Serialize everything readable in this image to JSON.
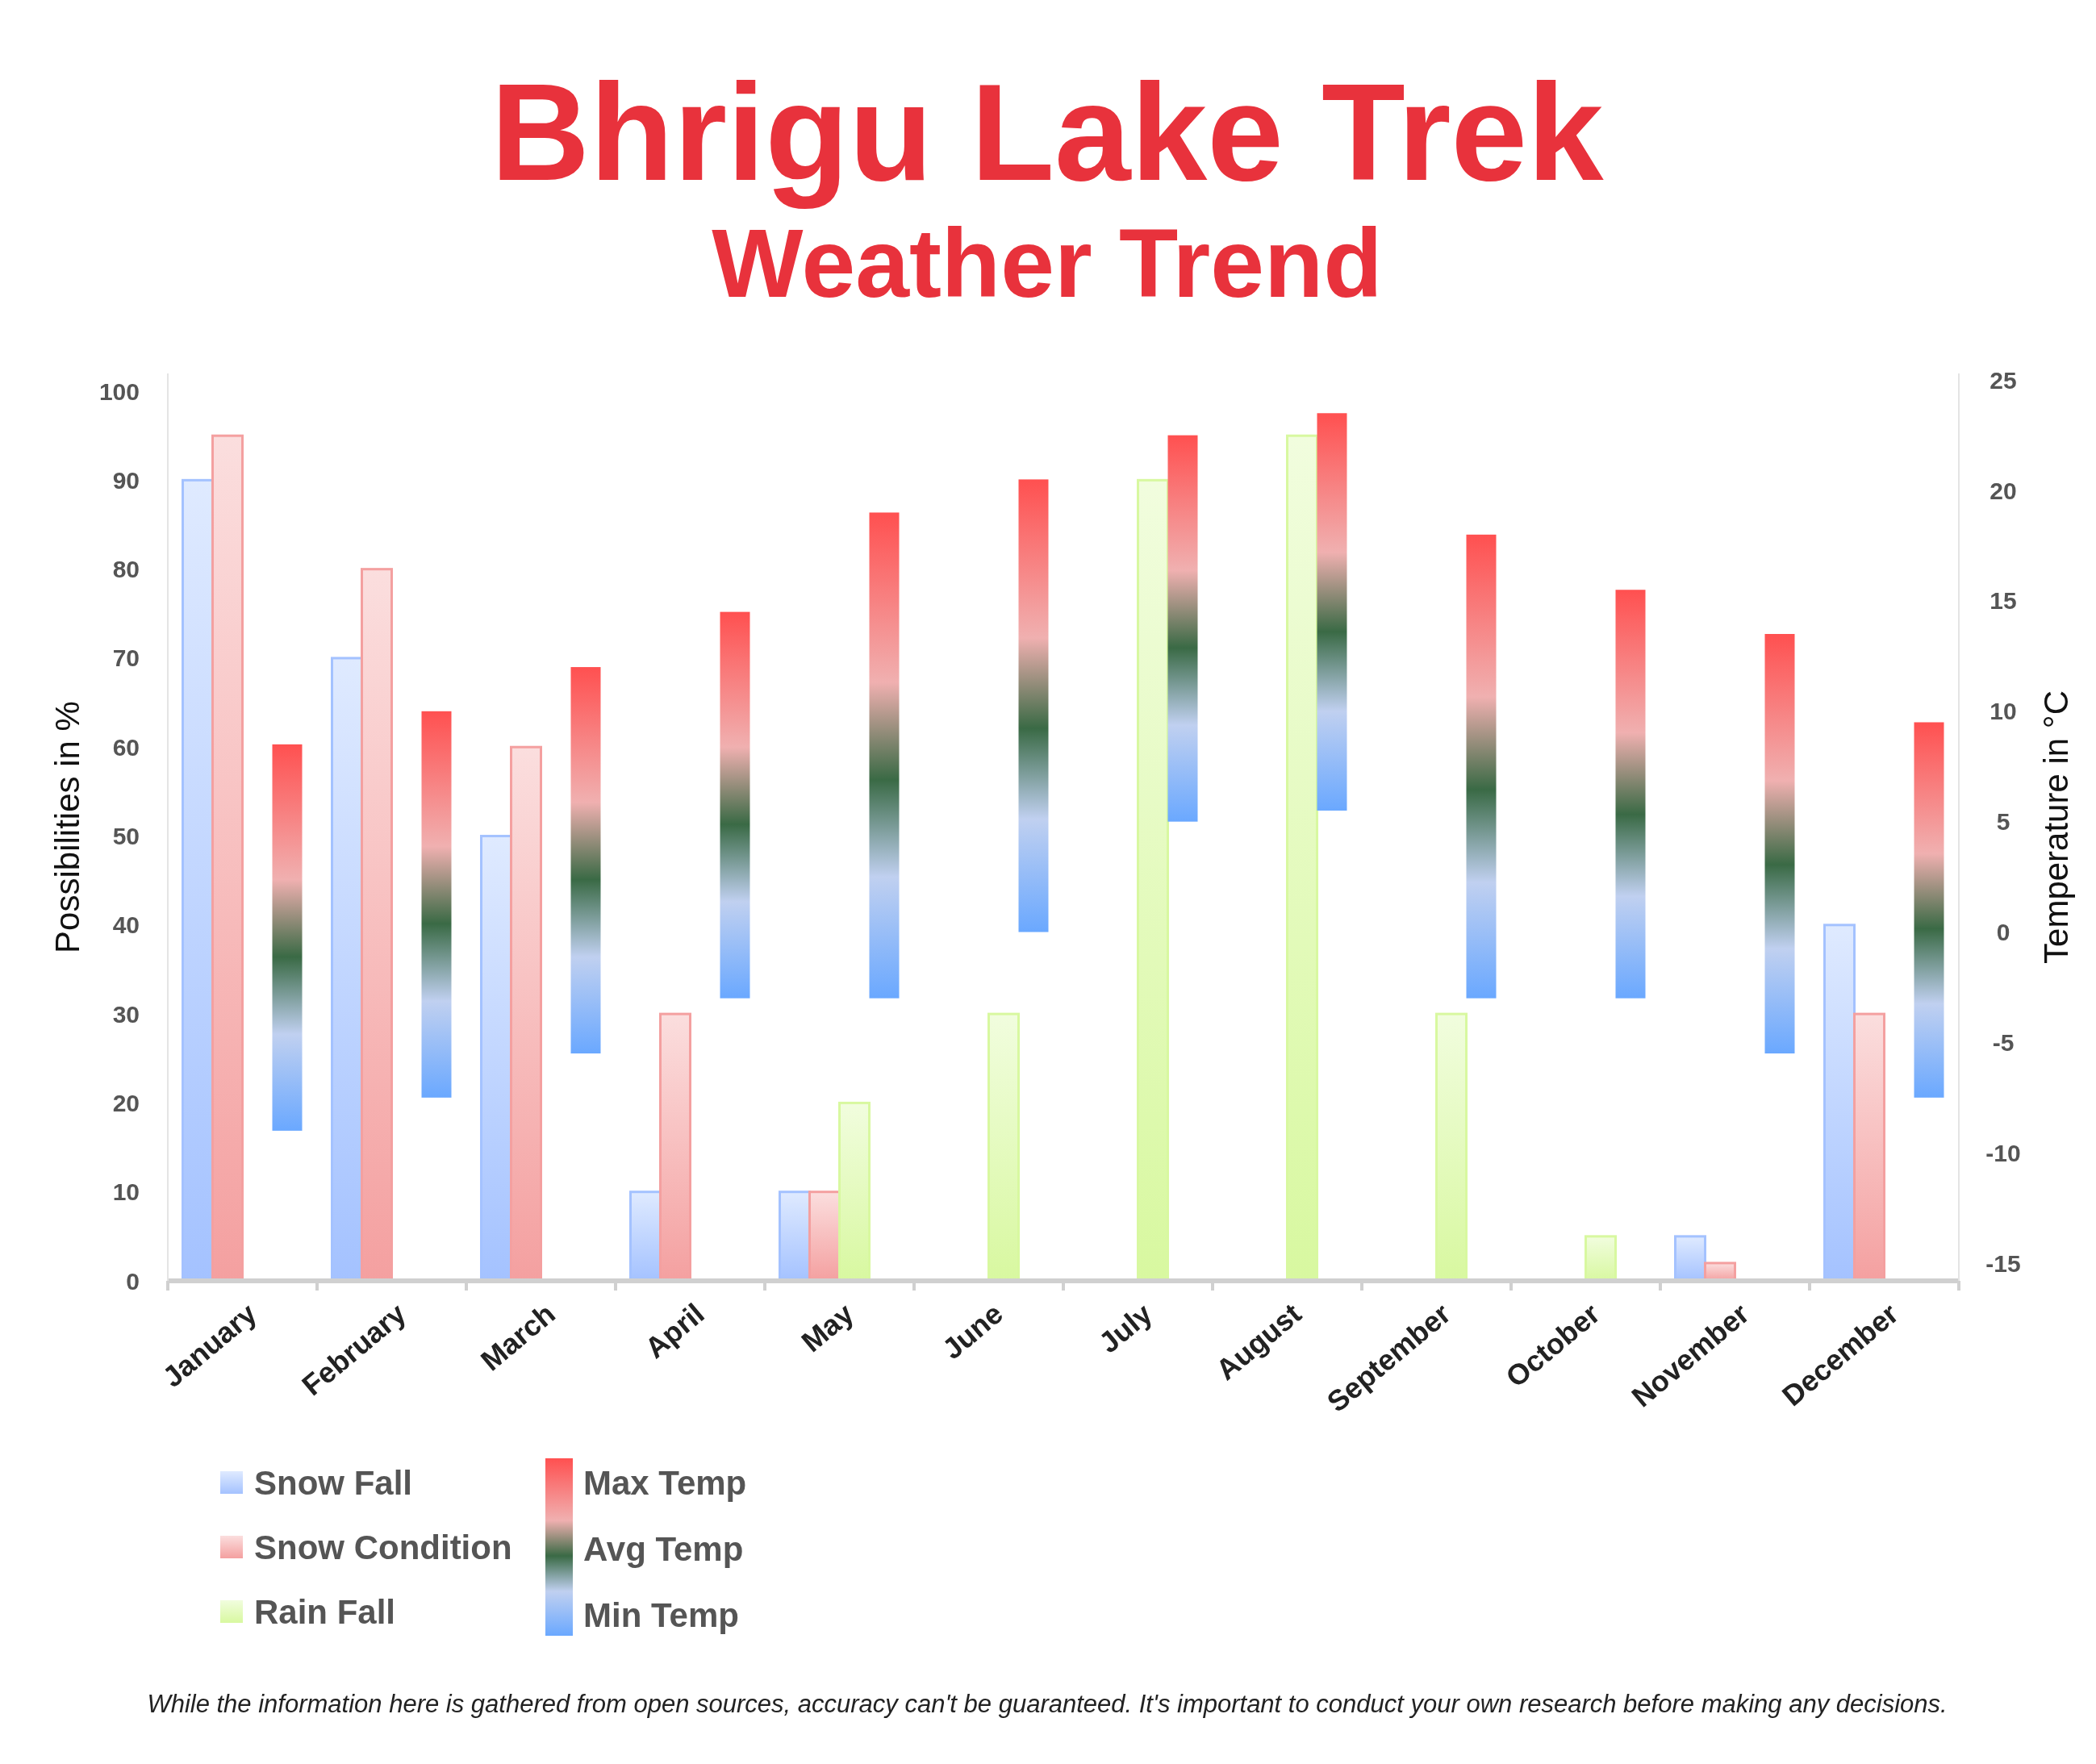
{
  "chart_data": {
    "type": "bar",
    "title": "Bhrigu Lake Trek",
    "subtitle": "Weather Trend",
    "ylabel": "Possibilities in %",
    "y2label": "Temperature in °C",
    "categories": [
      "January",
      "February",
      "March",
      "April",
      "May",
      "June",
      "July",
      "August",
      "September",
      "October",
      "November",
      "December"
    ],
    "series": [
      {
        "name": "Snow Fall",
        "color": "#a4c2ff",
        "values": [
          90,
          70,
          50,
          10,
          10,
          null,
          null,
          null,
          null,
          null,
          5,
          40
        ]
      },
      {
        "name": "Snow Condition",
        "color": "#f4a0a0",
        "values": [
          95,
          80,
          60,
          30,
          10,
          null,
          null,
          null,
          null,
          null,
          2,
          30
        ]
      },
      {
        "name": "Rain Fall",
        "color": "#d8f8a0",
        "values": [
          null,
          null,
          null,
          null,
          20,
          30,
          90,
          95,
          30,
          5,
          null,
          null
        ]
      },
      {
        "color": "#ff5050",
        "axis": "y2",
        "base": [
          -9,
          -7.5,
          -5.5,
          -3,
          -3,
          0,
          5,
          5.5,
          -3,
          -3,
          -5.5,
          -7.5
        ],
        "values": [
          17.5,
          17.5,
          17.5,
          17.5,
          22,
          20.5,
          17.5,
          18,
          21,
          18.5,
          19,
          17
        ]
      }
    ],
    "ylim": [
      0,
      102
    ],
    "yticks": [
      0,
      10,
      20,
      30,
      40,
      50,
      60,
      70,
      80,
      90,
      100
    ],
    "y2lim": [
      -15.8,
      25.3
    ],
    "y2ticks": [
      -15,
      -10,
      -5,
      0,
      5,
      10,
      15,
      20,
      25
    ],
    "grid": false,
    "legend": "bottom left",
    "annotations": [
      "Max Temp",
      "Avg Temp",
      "Min Temp",
      "While the information here is gathered from open sources, accuracy can't be guaranteed. It's important to conduct your own research before making any decisions."
    ]
  }
}
